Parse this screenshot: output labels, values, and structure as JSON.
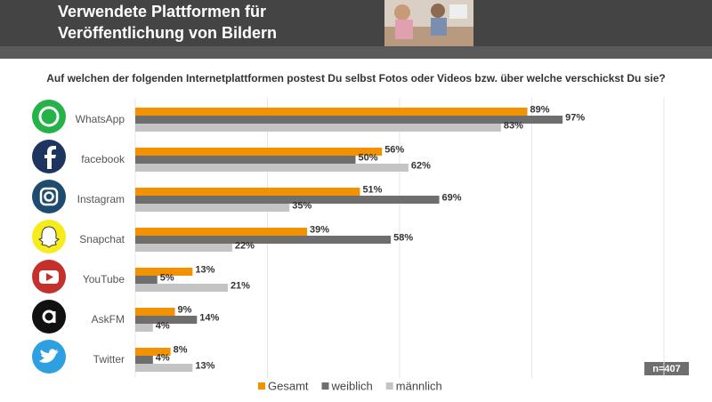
{
  "chart_data": {
    "type": "barh",
    "title": [
      "Verwendete Plattformen für",
      "Veröffentlichung von Bildern"
    ],
    "subtitle": "Auf welchen der folgenden Internetplattformen postest Du selbst Fotos oder Videos bzw. über welche verschickst Du sie?",
    "categories": [
      "WhatsApp",
      "facebook",
      "Instagram",
      "Snapchat",
      "YouTube",
      "AskFM",
      "Twitter"
    ],
    "series": [
      {
        "name": "Gesamt",
        "color": "#f39200",
        "values": [
          89,
          56,
          51,
          39,
          13,
          9,
          8
        ],
        "value_labels": [
          "89%",
          "56%",
          "51%",
          "39%",
          "13%",
          "9%",
          "8%"
        ]
      },
      {
        "name": "weiblich",
        "color": "#6e6e6e",
        "values": [
          97,
          50,
          69,
          58,
          5,
          14,
          4
        ],
        "value_labels": [
          "97%",
          "50%",
          "69%",
          "58%",
          "5%",
          "14%",
          "4%"
        ]
      },
      {
        "name": "männlich",
        "color": "#c4c4c4",
        "values": [
          83,
          62,
          35,
          22,
          21,
          4,
          13
        ],
        "value_labels": [
          "83%",
          "62%",
          "35%",
          "22%",
          "21%",
          "4%",
          "13%"
        ]
      }
    ],
    "xlim": [
      0,
      120
    ],
    "xticks": [
      0,
      30,
      60,
      90,
      120
    ],
    "grid": true,
    "annotation": "n=407"
  }
}
